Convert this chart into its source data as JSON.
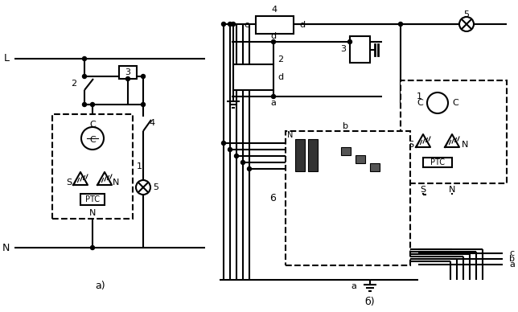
{
  "bg_color": "#ffffff",
  "line_color": "#000000",
  "title_a": "a)",
  "title_b": "б)",
  "label_L": "L",
  "label_N": "N",
  "label_1": "1",
  "label_2": "2",
  "label_3": "3",
  "label_4": "4",
  "label_5": "5",
  "label_6": "6",
  "label_C": "C",
  "label_S": "S",
  "label_NN": "N",
  "label_a": "a",
  "label_b": "b",
  "label_c": "c",
  "label_d": "d",
  "label_e": "e",
  "label_PTC": "PTC",
  "figsize": [
    6.44,
    3.88
  ],
  "dpi": 100
}
